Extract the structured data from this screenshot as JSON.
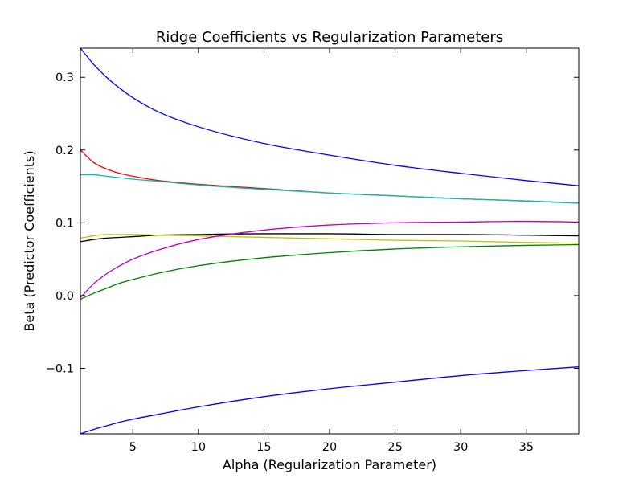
{
  "chart_data": {
    "type": "line",
    "title": "Ridge Coefficients vs Regularization Parameters",
    "xlabel": "Alpha (Regularization Parameter)",
    "ylabel": "Beta (Predictor Coefficients)",
    "xlim": [
      1,
      39
    ],
    "ylim": [
      -0.19,
      0.34
    ],
    "xticks": [
      {
        "value": 5,
        "label": "5"
      },
      {
        "value": 10,
        "label": "10"
      },
      {
        "value": 15,
        "label": "15"
      },
      {
        "value": 20,
        "label": "20"
      },
      {
        "value": 25,
        "label": "25"
      },
      {
        "value": 30,
        "label": "30"
      },
      {
        "value": 35,
        "label": "35"
      }
    ],
    "yticks": [
      {
        "value": 0.3,
        "label": "0.3"
      },
      {
        "value": 0.2,
        "label": "0.2"
      },
      {
        "value": 0.1,
        "label": "0.1"
      },
      {
        "value": 0.0,
        "label": "0.0"
      },
      {
        "value": -0.1,
        "label": "−0.1"
      }
    ],
    "grid": false,
    "legend": "none",
    "x": [
      1,
      2,
      3,
      4,
      5,
      7,
      10,
      15,
      20,
      25,
      30,
      35,
      39
    ],
    "series": [
      {
        "color": "#0000ff",
        "values": [
          0.34,
          0.318,
          0.3,
          0.285,
          0.272,
          0.252,
          0.232,
          0.209,
          0.193,
          0.179,
          0.168,
          0.158,
          0.151
        ]
      },
      {
        "color": "#ff0000",
        "values": [
          0.2,
          0.183,
          0.174,
          0.168,
          0.164,
          0.158,
          0.153,
          0.147,
          0.141,
          0.137,
          0.133,
          0.13,
          0.127
        ]
      },
      {
        "color": "#00bfbf",
        "values": [
          0.166,
          0.166,
          0.164,
          0.162,
          0.16,
          0.157,
          0.152,
          0.146,
          0.141,
          0.137,
          0.133,
          0.13,
          0.127
        ]
      },
      {
        "color": "#000000",
        "values": [
          0.074,
          0.077,
          0.079,
          0.08,
          0.081,
          0.083,
          0.084,
          0.085,
          0.085,
          0.084,
          0.084,
          0.083,
          0.082
        ]
      },
      {
        "color": "#bfbf00",
        "values": [
          0.079,
          0.082,
          0.084,
          0.084,
          0.084,
          0.083,
          0.082,
          0.08,
          0.078,
          0.076,
          0.075,
          0.073,
          0.072
        ]
      },
      {
        "color": "#bf00bf",
        "values": [
          -0.003,
          0.016,
          0.03,
          0.041,
          0.05,
          0.063,
          0.077,
          0.09,
          0.097,
          0.1,
          0.101,
          0.102,
          0.101
        ]
      },
      {
        "color": "#008000",
        "values": [
          -0.005,
          0.003,
          0.01,
          0.017,
          0.022,
          0.031,
          0.041,
          0.052,
          0.059,
          0.064,
          0.067,
          0.069,
          0.07
        ]
      },
      {
        "color": "#0000ff",
        "values": [
          -0.19,
          -0.184,
          -0.179,
          -0.174,
          -0.17,
          -0.163,
          -0.153,
          -0.139,
          -0.128,
          -0.119,
          -0.11,
          -0.103,
          -0.098
        ]
      }
    ]
  }
}
